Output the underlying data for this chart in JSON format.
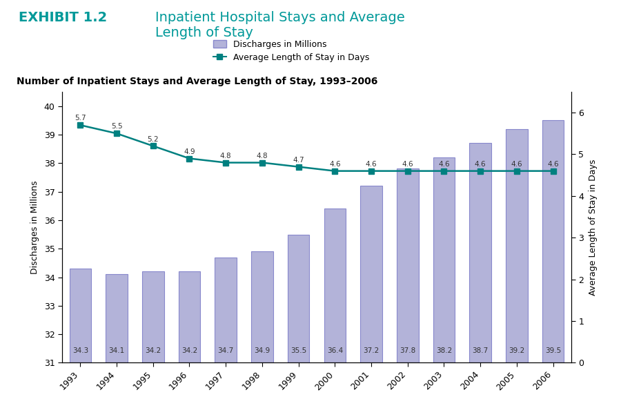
{
  "years": [
    1993,
    1994,
    1995,
    1996,
    1997,
    1998,
    1999,
    2000,
    2001,
    2002,
    2003,
    2004,
    2005,
    2006
  ],
  "discharges": [
    34.3,
    34.1,
    34.2,
    34.2,
    34.7,
    34.9,
    35.5,
    36.4,
    37.2,
    37.8,
    38.2,
    38.7,
    39.2,
    39.5
  ],
  "avg_los": [
    5.7,
    5.5,
    5.2,
    4.9,
    4.8,
    4.8,
    4.7,
    4.6,
    4.6,
    4.6,
    4.6,
    4.6,
    4.6,
    4.6
  ],
  "bar_color": "#b3b3d9",
  "bar_edge_color": "#8888cc",
  "line_color": "#008080",
  "marker_color": "#008080",
  "title_exhibit": "EXHIBIT 1.2",
  "title_main": "Inpatient Hospital Stays and Average\nLength of Stay",
  "subtitle": "Number of Inpatient Stays and Average Length of Stay, 1993–2006",
  "ylabel_left": "Discharges in Millions",
  "ylabel_right": "Average Length of Stay in Days",
  "legend_bar": "Discharges in Millions",
  "legend_line": "Average Length of Stay in Days",
  "ylim_left": [
    31,
    40.5
  ],
  "yticks_left": [
    31,
    32,
    33,
    34,
    35,
    36,
    37,
    38,
    39,
    40
  ],
  "ylim_right": [
    0,
    6.5
  ],
  "yticks_right": [
    0,
    1,
    2,
    3,
    4,
    5,
    6
  ],
  "title_color": "#009999",
  "exhibit_color": "#009999",
  "subtitle_color": "#000000",
  "background_color": "#ffffff"
}
